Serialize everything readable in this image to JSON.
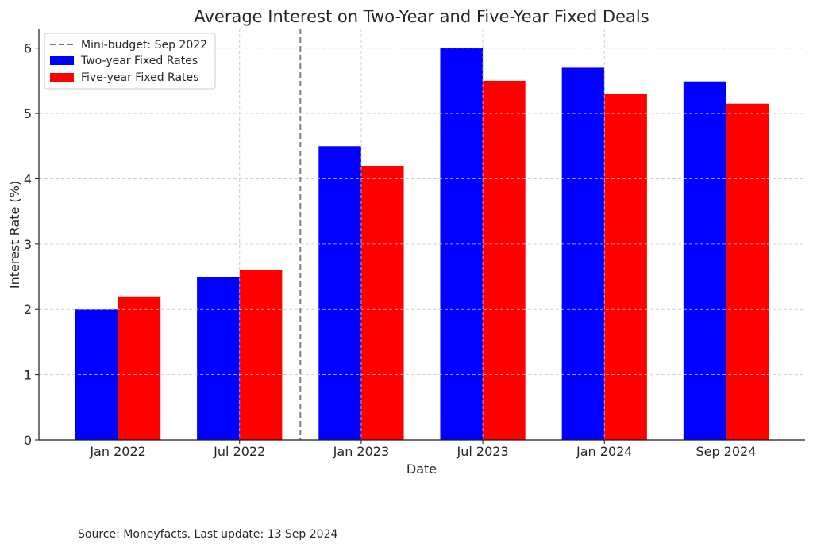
{
  "chart_data": {
    "type": "bar",
    "title": "Average Interest on Two-Year and Five-Year Fixed Deals",
    "xlabel": "Date",
    "ylabel": "Interest Rate (%)",
    "categories": [
      "Jan 2022",
      "Jul 2022",
      "Jan 2023",
      "Jul 2023",
      "Jan 2024",
      "Sep 2024"
    ],
    "series": [
      {
        "name": "Two-year Fixed Rates",
        "color": "#0000ff",
        "values": [
          2.0,
          2.5,
          4.5,
          6.0,
          5.7,
          5.49
        ]
      },
      {
        "name": "Five-year Fixed Rates",
        "color": "#ff0000",
        "values": [
          2.2,
          2.6,
          4.2,
          5.5,
          5.3,
          5.15
        ]
      }
    ],
    "ylim": [
      0,
      6.3
    ],
    "yticks": [
      0,
      1,
      2,
      3,
      4,
      5,
      6
    ],
    "grid": true,
    "legend_position": "top-left",
    "annotations": [
      {
        "type": "vline",
        "label": "Mini-budget: Sep 2022",
        "after_category": "Jul 2022",
        "style": "dashed",
        "color": "#808080"
      }
    ]
  },
  "footer": {
    "source": "Source: Moneyfacts. Last update: 13 Sep 2024"
  }
}
